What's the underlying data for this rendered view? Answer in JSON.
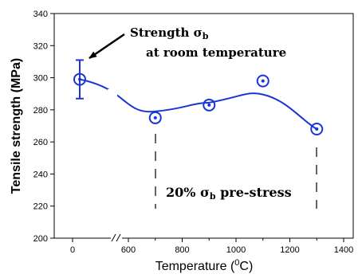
{
  "chart_data": {
    "type": "scatter",
    "xlabel": "Temperature (°C)",
    "xlabel_main": "Temperature (",
    "xlabel_sup": "0",
    "xlabel_tail": "C)",
    "ylabel": "Tensile strength (MPa)",
    "ylim": [
      200,
      340
    ],
    "yticks": [
      "200",
      "220",
      "240",
      "260",
      "280",
      "300",
      "320",
      "340"
    ],
    "x_axis_break": true,
    "xticks": [
      "0",
      "600",
      "800",
      "1000",
      "1200",
      "1400"
    ],
    "series": [
      {
        "x": [
          "RT",
          700,
          900,
          1100,
          1300
        ],
        "values": [
          299,
          275,
          283,
          298,
          268
        ],
        "error_bar_at_room_temperature": [
          287,
          311
        ]
      }
    ],
    "fit_curve": true,
    "annotations": {
      "room_temp_line1": "Strength σ",
      "room_temp_line1_sub": "b",
      "room_temp_line2": "at room temperature",
      "prestress_main": "20% σ",
      "prestress_sub": "b",
      "prestress_tail": " pre-stress"
    },
    "grid": false,
    "legend": "none",
    "color": "#1a35d6"
  }
}
